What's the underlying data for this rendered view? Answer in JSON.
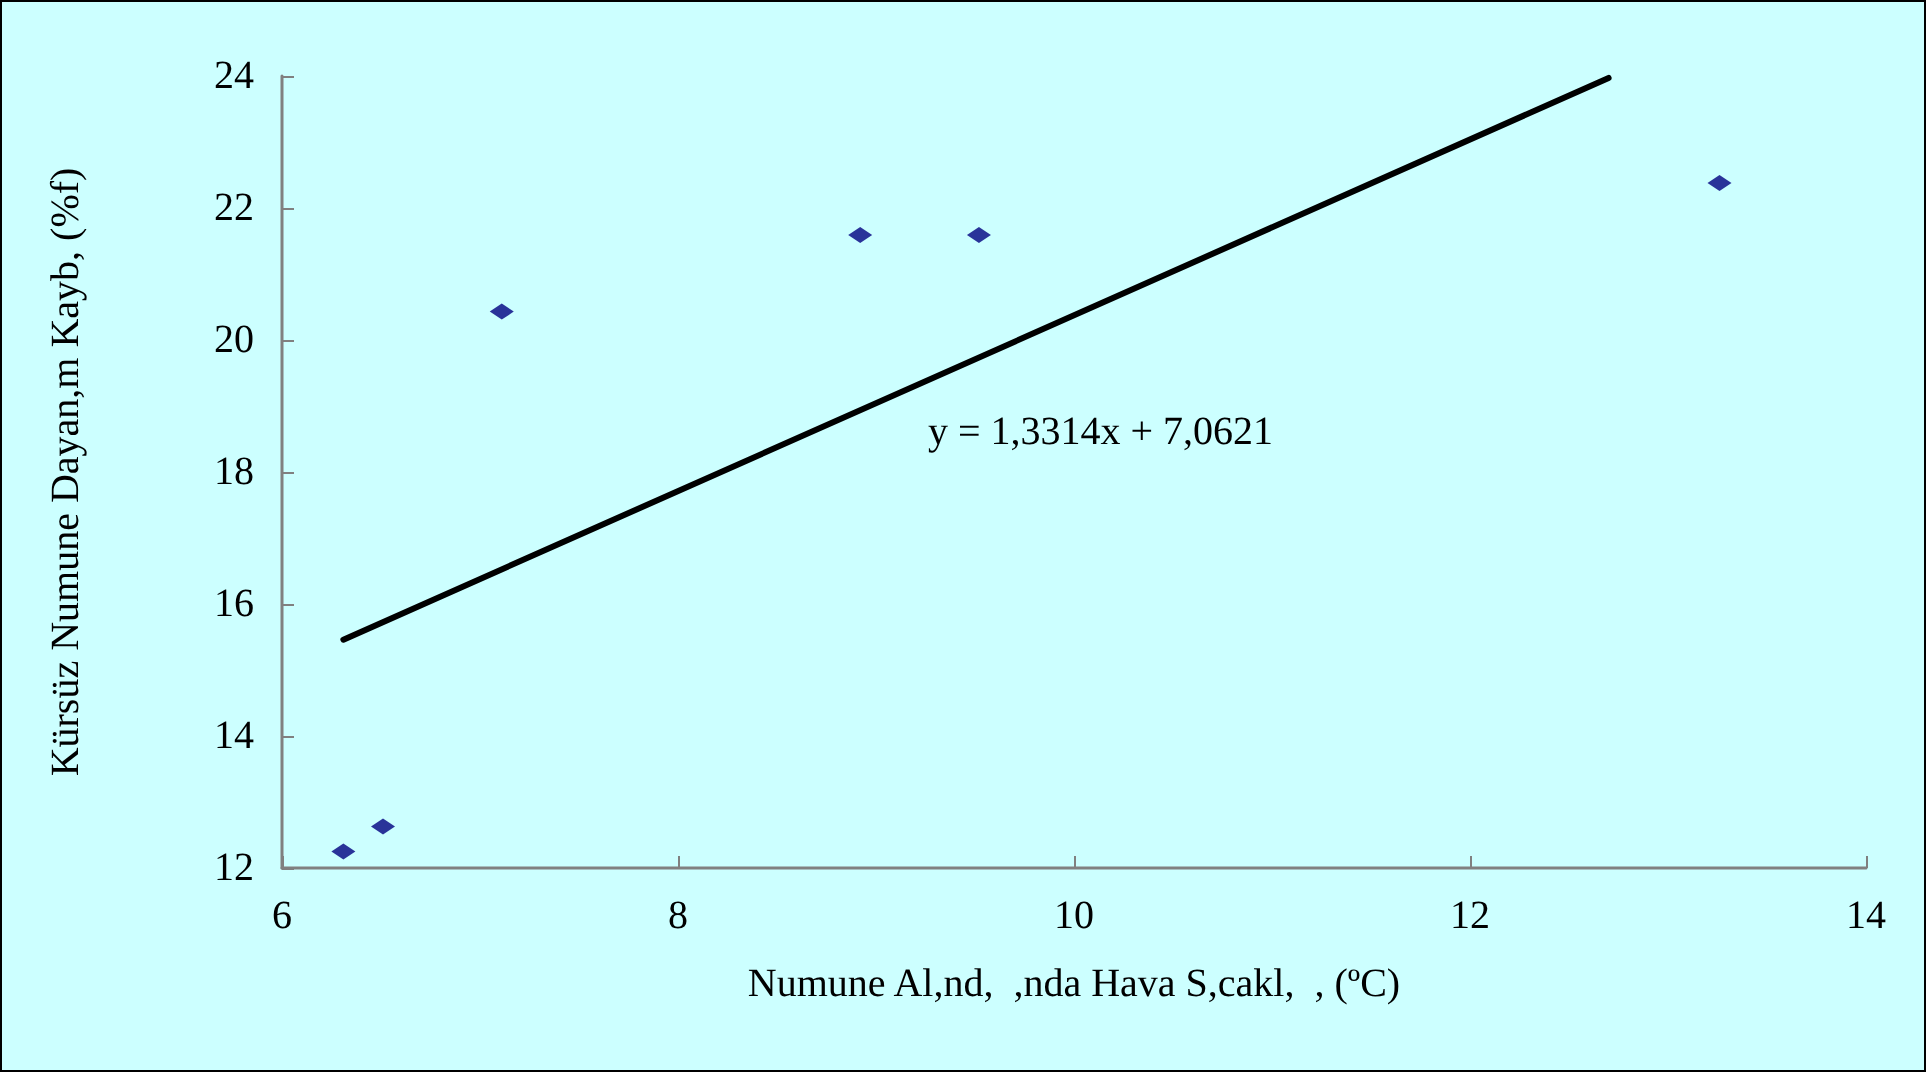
{
  "chart_data": {
    "type": "scatter",
    "xlabel": "Numune Al,nd,  ,nda Hava S,cakl,  , (ºC)",
    "ylabel": "Kürsüz Numune Dayan,m Kayb, (%f)",
    "annotations": [
      "y = 1,3314x + 7,0621"
    ],
    "x": [
      6.31,
      6.51,
      7.11,
      8.92,
      9.52,
      13.26
    ],
    "series": [
      {
        "color": "#000080",
        "marker": "diamond",
        "values": [
          12.25,
          12.63,
          20.43,
          21.59,
          21.59,
          22.38
        ]
      },
      {
        "type": "line",
        "color": "#000000",
        "marker": "none",
        "line_style": "solid",
        "x": [
          6.31,
          12.7
        ],
        "values": [
          15.46,
          23.97
        ]
      }
    ],
    "xlim": [
      6,
      14
    ],
    "xticks": [
      6,
      8,
      10,
      12,
      14
    ],
    "ylim": [
      12,
      24
    ],
    "yticks": [
      12,
      14,
      16,
      18,
      20,
      22,
      24
    ],
    "grid": false
  }
}
